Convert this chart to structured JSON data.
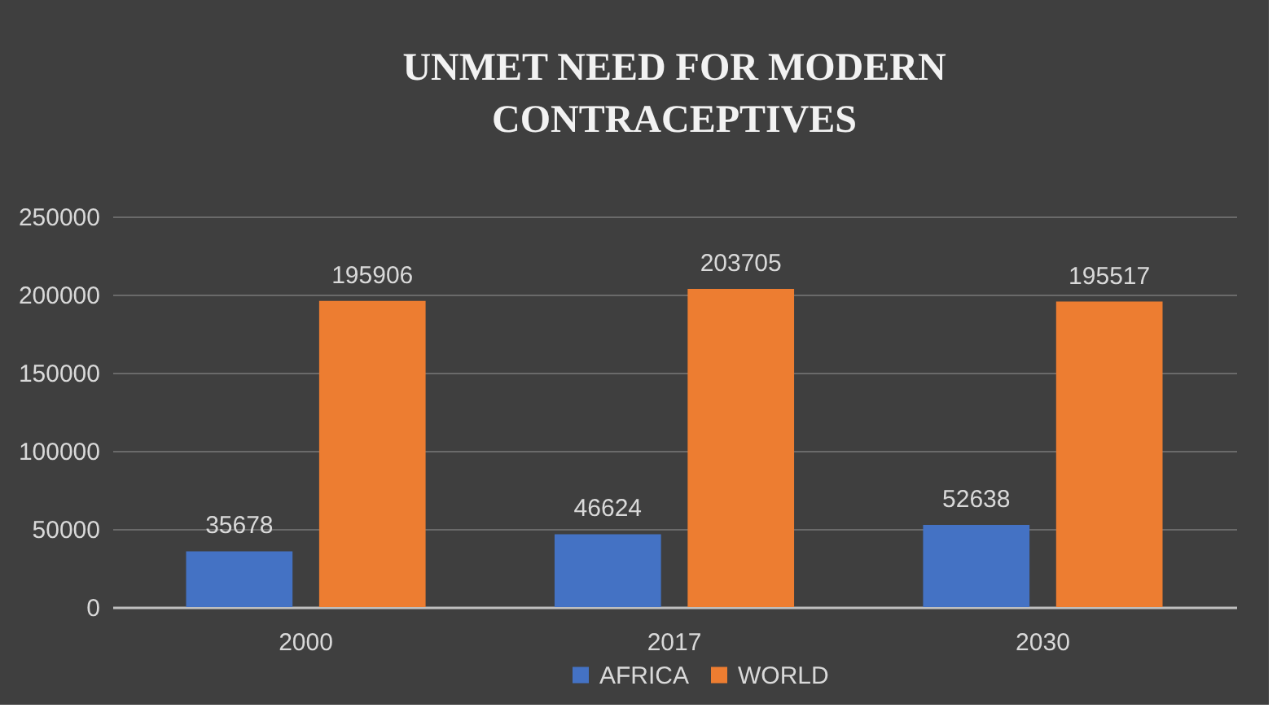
{
  "chart_data": {
    "type": "bar",
    "title": [
      "UNMET NEED FOR MODERN",
      "CONTRACEPTIVES"
    ],
    "categories": [
      "2000",
      "2017",
      "2030"
    ],
    "series": [
      {
        "name": "AFRICA",
        "color": "#4472c4",
        "values": [
          35678,
          46624,
          52638
        ]
      },
      {
        "name": "WORLD",
        "color": "#ed7d31",
        "values": [
          195906,
          203705,
          195517
        ]
      }
    ],
    "ylim": [
      0,
      250000
    ],
    "yticks": [
      0,
      50000,
      100000,
      150000,
      200000,
      250000
    ],
    "grid": "y",
    "legend": "bottom",
    "data_labels": true
  }
}
